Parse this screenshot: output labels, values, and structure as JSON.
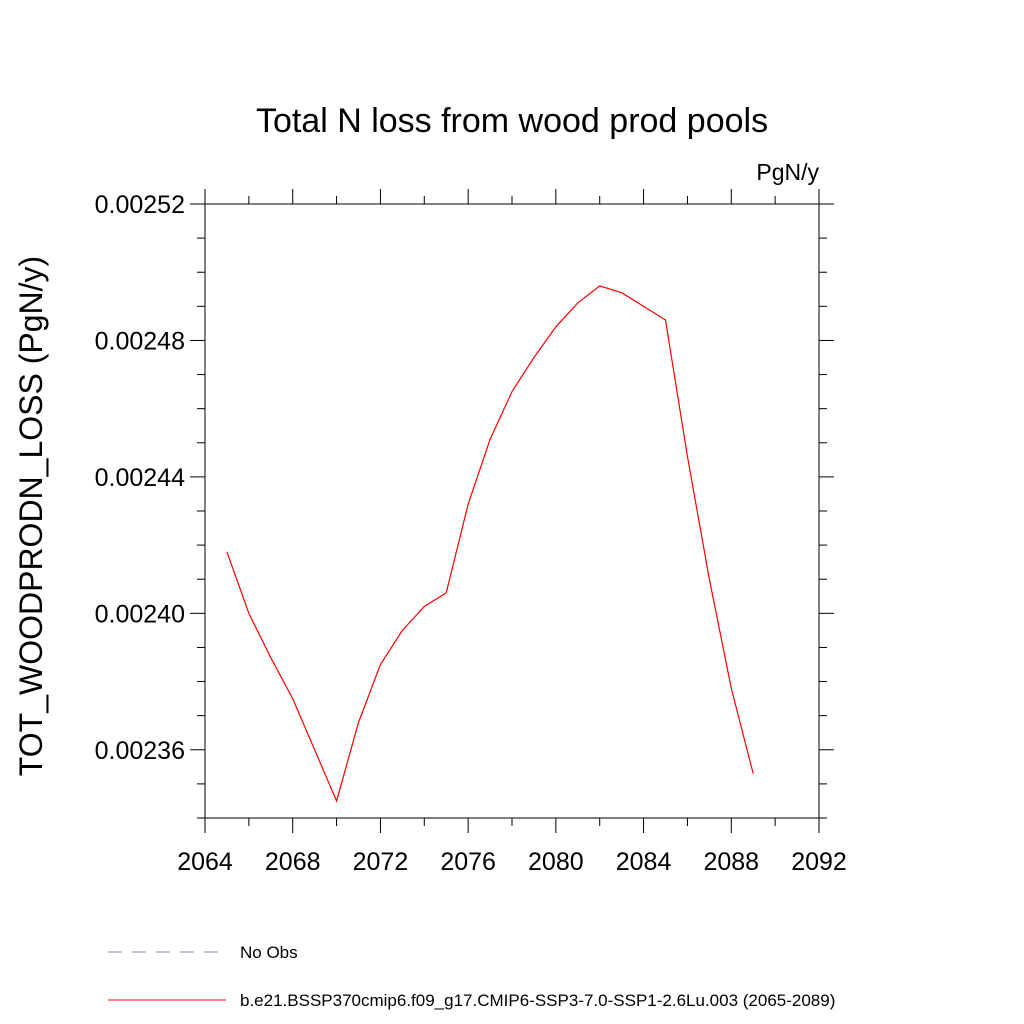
{
  "chart_data": {
    "type": "line",
    "title": "Total N loss from wood prod pools",
    "units_label": "PgN/y",
    "xlabel": "",
    "ylabel": "TOT_WOODPRODN_LOSS  (PgN/y)",
    "xlim": [
      2064,
      2092
    ],
    "ylim": [
      0.00234,
      0.00252
    ],
    "x_ticks": [
      2064,
      2068,
      2072,
      2076,
      2080,
      2084,
      2088,
      2092
    ],
    "x_tick_labels": [
      "2064",
      "2068",
      "2072",
      "2076",
      "2080",
      "2084",
      "2088",
      "2092"
    ],
    "y_ticks": [
      0.00236,
      0.0024,
      0.00244,
      0.00248,
      0.00252
    ],
    "y_tick_labels": [
      "0.00236",
      "0.00240",
      "0.00244",
      "0.00248",
      "0.00252"
    ],
    "grid": false,
    "legend_position": "bottom",
    "series": [
      {
        "name": "No Obs",
        "color": "#8c7fc0",
        "dash": "dashed",
        "x": [],
        "values": []
      },
      {
        "name": "b.e21.BSSP370cmip6.f09_g17.CMIP6-SSP3-7.0-SSP1-2.6Lu.003 (2065-2089)",
        "color": "#ff0000",
        "dash": "solid",
        "x": [
          2065,
          2066,
          2067,
          2068,
          2069,
          2070,
          2071,
          2072,
          2073,
          2074,
          2075,
          2076,
          2077,
          2078,
          2079,
          2080,
          2081,
          2082,
          2083,
          2084,
          2085,
          2086,
          2087,
          2088,
          2089
        ],
        "values": [
          0.002418,
          0.0024,
          0.002387,
          0.002375,
          0.00236,
          0.002345,
          0.002368,
          0.002385,
          0.002395,
          0.002402,
          0.002406,
          0.002432,
          0.002451,
          0.002465,
          0.002475,
          0.002484,
          0.002491,
          0.002496,
          0.002494,
          0.00249,
          0.002486,
          0.002446,
          0.00241,
          0.002378,
          0.002353
        ]
      }
    ]
  }
}
